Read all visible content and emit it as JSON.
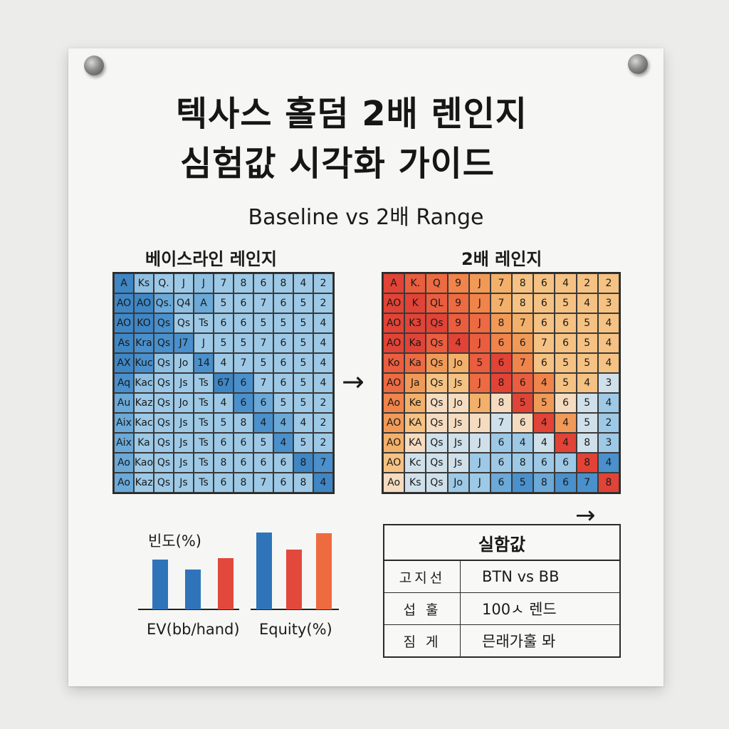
{
  "title_line1": "텍사스 홀덤 2배 렌인지",
  "title_line2": "심험값 시각화 가이드",
  "subtitle": "Baseline vs 2배 Range",
  "baseline": {
    "label": "베이스라인 레인지",
    "rows": [
      [
        "A",
        "Ks",
        "Q.",
        "J",
        "J",
        "7",
        "8",
        "6",
        "8",
        "4",
        "2"
      ],
      [
        "AO",
        "AO",
        "Qs.",
        "Q4",
        "A",
        "5",
        "6",
        "7",
        "6",
        "5",
        "2"
      ],
      [
        "AO",
        "KO",
        "Qs",
        "Qs",
        "Ts",
        "6",
        "6",
        "5",
        "5",
        "5",
        "4"
      ],
      [
        "As",
        "Kra",
        "Qs",
        "J7",
        "J",
        "5",
        "5",
        "7",
        "6",
        "5",
        "4"
      ],
      [
        "AX",
        "Kuc",
        "Qs",
        "Jo",
        "14",
        "4",
        "7",
        "5",
        "6",
        "5",
        "4"
      ],
      [
        "Aq",
        "Kac",
        "Qs",
        "Js",
        "Ts",
        "67",
        "6",
        "7",
        "6",
        "5",
        "4"
      ],
      [
        "Au",
        "Kaz",
        "Qs",
        "Jo",
        "Ts",
        "4",
        "6",
        "6",
        "5",
        "5",
        "2"
      ],
      [
        "Aix",
        "Kac",
        "Qs",
        "Js",
        "Ts",
        "5",
        "8",
        "4",
        "4",
        "4",
        "2"
      ],
      [
        "Aix",
        "Ka",
        "Qs",
        "Js",
        "Ts",
        "6",
        "6",
        "5",
        "4",
        "5",
        "2"
      ],
      [
        "Ao",
        "Kao",
        "Qs",
        "Js",
        "Ts",
        "8",
        "6",
        "6",
        "6",
        "8",
        "7"
      ],
      [
        "Ao",
        "Kaz",
        "Qs",
        "Js",
        "Ts",
        "6",
        "8",
        "7",
        "6",
        "8",
        "4"
      ]
    ],
    "colors": [
      [
        "#3f86c4",
        "#8fc0e2",
        "#9dc9e6",
        "#9dc9e6",
        "#8fc0e2",
        "#9dc9e6",
        "#9dc9e6",
        "#9dc9e6",
        "#9dc9e6",
        "#9dc9e6",
        "#9dc9e6"
      ],
      [
        "#3f86c4",
        "#3f86c4",
        "#6aa9d8",
        "#8fc0e2",
        "#6aa9d8",
        "#9dc9e6",
        "#9dc9e6",
        "#9dc9e6",
        "#9dc9e6",
        "#9dc9e6",
        "#9dc9e6"
      ],
      [
        "#3f86c4",
        "#3f86c4",
        "#4a90cc",
        "#9dc9e6",
        "#9dc9e6",
        "#9dc9e6",
        "#9dc9e6",
        "#9dc9e6",
        "#9dc9e6",
        "#9dc9e6",
        "#9dc9e6"
      ],
      [
        "#3f86c4",
        "#4a90cc",
        "#4a90cc",
        "#4a90cc",
        "#9dc9e6",
        "#9dc9e6",
        "#9dc9e6",
        "#9dc9e6",
        "#9dc9e6",
        "#9dc9e6",
        "#9dc9e6"
      ],
      [
        "#3f86c4",
        "#4a90cc",
        "#8fc0e2",
        "#9dc9e6",
        "#4a90cc",
        "#9dc9e6",
        "#9dc9e6",
        "#9dc9e6",
        "#9dc9e6",
        "#9dc9e6",
        "#9dc9e6"
      ],
      [
        "#4a90cc",
        "#8fc0e2",
        "#9dc9e6",
        "#9dc9e6",
        "#9dc9e6",
        "#3f86c4",
        "#4a90cc",
        "#9dc9e6",
        "#9dc9e6",
        "#9dc9e6",
        "#9dc9e6"
      ],
      [
        "#6aa9d8",
        "#9dc9e6",
        "#9dc9e6",
        "#9dc9e6",
        "#9dc9e6",
        "#9dc9e6",
        "#4a90cc",
        "#6aa9d8",
        "#9dc9e6",
        "#9dc9e6",
        "#9dc9e6"
      ],
      [
        "#6aa9d8",
        "#9dc9e6",
        "#9dc9e6",
        "#9dc9e6",
        "#9dc9e6",
        "#9dc9e6",
        "#9dc9e6",
        "#4a90cc",
        "#6aa9d8",
        "#9dc9e6",
        "#9dc9e6"
      ],
      [
        "#6aa9d8",
        "#9dc9e6",
        "#9dc9e6",
        "#9dc9e6",
        "#9dc9e6",
        "#9dc9e6",
        "#9dc9e6",
        "#9dc9e6",
        "#4a90cc",
        "#9dc9e6",
        "#9dc9e6"
      ],
      [
        "#6aa9d8",
        "#9dc9e6",
        "#9dc9e6",
        "#9dc9e6",
        "#9dc9e6",
        "#9dc9e6",
        "#9dc9e6",
        "#9dc9e6",
        "#9dc9e6",
        "#3f86c4",
        "#4a90cc"
      ],
      [
        "#6aa9d8",
        "#9dc9e6",
        "#9dc9e6",
        "#9dc9e6",
        "#9dc9e6",
        "#9dc9e6",
        "#9dc9e6",
        "#9dc9e6",
        "#9dc9e6",
        "#9dc9e6",
        "#3f86c4"
      ]
    ]
  },
  "double": {
    "label": "2배 레인지",
    "rows": [
      [
        "A",
        "K.",
        "Q",
        "9",
        "J",
        "7",
        "8",
        "6",
        "4",
        "2",
        "2"
      ],
      [
        "AO",
        "K",
        "QL",
        "9",
        "J",
        "7",
        "8",
        "6",
        "5",
        "4",
        "3"
      ],
      [
        "AO",
        "K3",
        "Qs",
        "9",
        "J",
        "8",
        "7",
        "6",
        "6",
        "5",
        "4"
      ],
      [
        "AO",
        "Ka",
        "Qs",
        "4",
        "J",
        "6",
        "6",
        "7",
        "6",
        "5",
        "4"
      ],
      [
        "Ko",
        "Ka",
        "Qs",
        "Jo",
        "5",
        "6",
        "7",
        "6",
        "5",
        "5",
        "4"
      ],
      [
        "AO",
        "Ja",
        "Qs",
        "Js",
        "J",
        "8",
        "6",
        "4",
        "5",
        "4",
        "3"
      ],
      [
        "Ao",
        "Ke",
        "Qs",
        "Jo",
        "J",
        "8",
        "5",
        "5",
        "6",
        "5",
        "4"
      ],
      [
        "AO",
        "KA",
        "Qs",
        "Js",
        "J",
        "7",
        "6",
        "4",
        "4",
        "5",
        "2"
      ],
      [
        "AO",
        "KA",
        "Qs",
        "Js",
        "J",
        "6",
        "4",
        "4",
        "4",
        "8",
        "3"
      ],
      [
        "AO",
        "Kc",
        "Qs",
        "Js",
        "J",
        "6",
        "8",
        "6",
        "6",
        "8",
        "4"
      ],
      [
        "Ao",
        "Ks",
        "Qs",
        "Jo",
        "J",
        "6",
        "5",
        "8",
        "6",
        "7",
        "8"
      ]
    ],
    "colors": [
      [
        "#e14336",
        "#ea5d3e",
        "#ec6b42",
        "#f0844a",
        "#f19a58",
        "#f3b06a",
        "#f5c283",
        "#f5c283",
        "#f5c283",
        "#f5c283",
        "#f5c283"
      ],
      [
        "#e14336",
        "#e14336",
        "#ea5d3e",
        "#ec6b42",
        "#f0844a",
        "#f3b06a",
        "#f5c283",
        "#f5c283",
        "#f5c283",
        "#f5c283",
        "#f5c283"
      ],
      [
        "#e14336",
        "#e14336",
        "#e14336",
        "#ea5d3e",
        "#ec6b42",
        "#f19a58",
        "#f3b06a",
        "#f5c283",
        "#f5c283",
        "#f5c283",
        "#f5c283"
      ],
      [
        "#e14336",
        "#e14336",
        "#ea5d3e",
        "#e14336",
        "#ea5d3e",
        "#f0844a",
        "#f19a58",
        "#f5c283",
        "#f5c283",
        "#f5c283",
        "#f5c283"
      ],
      [
        "#ea5d3e",
        "#ec6b42",
        "#f19a58",
        "#f3b06a",
        "#ea5d3e",
        "#e14336",
        "#f0844a",
        "#f5c283",
        "#f5c283",
        "#f5c283",
        "#f5c283"
      ],
      [
        "#ec6b42",
        "#f19a58",
        "#f5c283",
        "#f5c283",
        "#ec6b42",
        "#e14336",
        "#ea5d3e",
        "#f0844a",
        "#f5c283",
        "#f5c283",
        "#cfe0ea"
      ],
      [
        "#f0844a",
        "#f3b06a",
        "#f5dcc0",
        "#f5dcc0",
        "#f3b06a",
        "#f5dcc0",
        "#e14336",
        "#f19a58",
        "#f5dcc0",
        "#cfe0ea",
        "#9dc9e6"
      ],
      [
        "#f19a58",
        "#f5c283",
        "#f5dcc0",
        "#f5dcc0",
        "#f5dcc0",
        "#cfe0ea",
        "#f5dcc0",
        "#e14336",
        "#f19a58",
        "#cfe0ea",
        "#9dc9e6"
      ],
      [
        "#f3b06a",
        "#f5dcc0",
        "#cfe0ea",
        "#cfe0ea",
        "#cfe0ea",
        "#9dc9e6",
        "#9dc9e6",
        "#cfe0ea",
        "#e14336",
        "#cfe0ea",
        "#9dc9e6"
      ],
      [
        "#f5c283",
        "#cfe0ea",
        "#cfe0ea",
        "#cfe0ea",
        "#9dc9e6",
        "#9dc9e6",
        "#9dc9e6",
        "#9dc9e6",
        "#9dc9e6",
        "#e14336",
        "#4a90cc"
      ],
      [
        "#f5dcc0",
        "#cfe0ea",
        "#cfe0ea",
        "#9dc9e6",
        "#9dc9e6",
        "#6aa9d8",
        "#4a90cc",
        "#6aa9d8",
        "#4a90cc",
        "#4a90cc",
        "#e14336"
      ]
    ]
  },
  "arrow_glyph": "→",
  "bars": {
    "freq_label": "빈도(%)",
    "ev_label": "EV(bb/hand)",
    "equity_label": "Equity(%)",
    "ev_values": [
      70,
      56,
      72
    ],
    "ev_colors": [
      "#2f74b9",
      "#2f74b9",
      "#e2483b"
    ],
    "equity_values": [
      108,
      84,
      107
    ],
    "equity_colors": [
      "#2f74b9",
      "#e2483b",
      "#ee6a3f"
    ]
  },
  "table": {
    "header": "실함값",
    "rows": [
      {
        "key": "고지선",
        "value": "BTN vs BB"
      },
      {
        "key": "섭 훌",
        "value": "100ㅅ 렌드"
      },
      {
        "key": "짐 게",
        "value": "믄래가훌 뫄"
      }
    ]
  }
}
